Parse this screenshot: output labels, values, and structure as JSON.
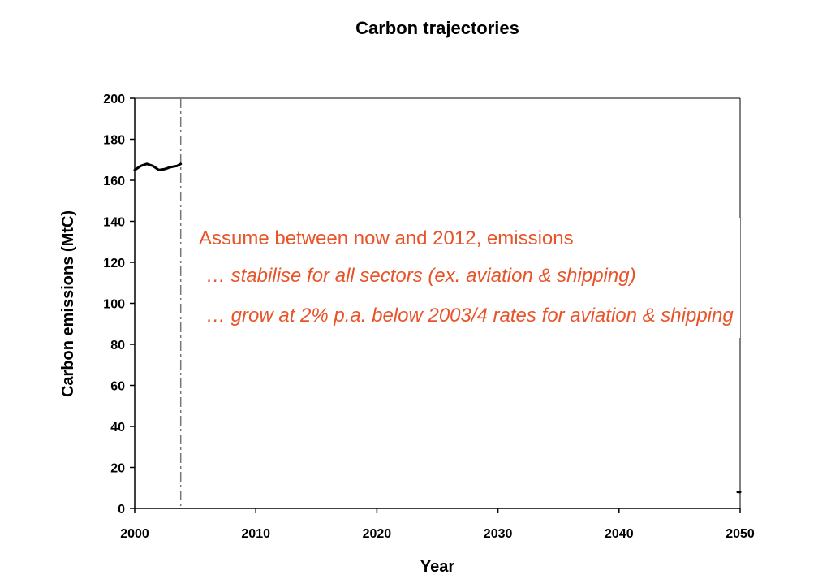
{
  "chart_data": {
    "type": "line",
    "title": "Carbon trajectories",
    "xlabel": "Year",
    "ylabel": "Carbon emissions (MtC)",
    "xlim": [
      2000,
      2050
    ],
    "ylim": [
      0,
      200
    ],
    "x_ticks": [
      2000,
      2010,
      2020,
      2030,
      2040,
      2050
    ],
    "y_ticks": [
      0,
      20,
      40,
      60,
      80,
      100,
      120,
      140,
      160,
      180,
      200
    ],
    "grid": false,
    "series": [
      {
        "color": "#000000",
        "x": [
          2000,
          2000.5,
          2001,
          2001.5,
          2002,
          2002.5,
          2003,
          2003.5,
          2003.8
        ],
        "y": [
          165,
          167,
          168,
          167,
          165,
          165.5,
          166.5,
          167,
          168
        ]
      },
      {
        "color": "#000000",
        "x": [
          2049.8,
          2050
        ],
        "y": [
          8,
          8
        ]
      }
    ],
    "reference_line": {
      "x": 2003.8,
      "style": "dash-dot",
      "color": "#777777"
    },
    "annotations": [
      {
        "text": "Assume between now and 2012, emissions",
        "style": "normal",
        "color": "#e8542a"
      },
      {
        "text": "… stabilise for all sectors (ex. aviation & shipping)",
        "style": "italic",
        "color": "#e8542a"
      },
      {
        "text": "… grow at 2% p.a. below 2003/4 rates for aviation & shipping",
        "style": "italic",
        "color": "#e8542a"
      }
    ]
  }
}
